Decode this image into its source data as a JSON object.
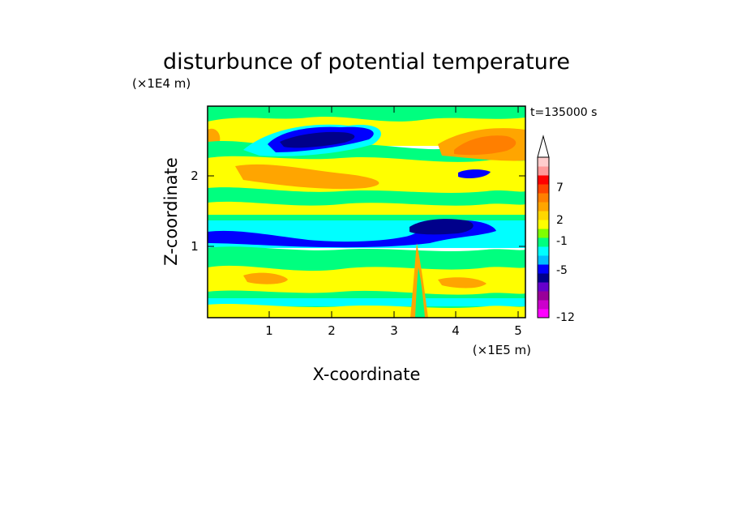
{
  "chart_data": {
    "type": "heatmap",
    "title": "disturbunce of potential temperature",
    "xlabel": "X-coordinate",
    "ylabel": "Z-coordinate",
    "x_unit": "(×1E5 m)",
    "y_unit": "(×1E4 m)",
    "time_label": "t=135000 s",
    "xlim": [
      0,
      5.1
    ],
    "ylim": [
      0,
      3.0
    ],
    "x_ticks": [
      "1",
      "2",
      "3",
      "4",
      "5"
    ],
    "y_ticks": [
      "1",
      "2"
    ],
    "colorbar": {
      "levels_printed": [
        "7",
        "2",
        "-1",
        "-5",
        "-12"
      ],
      "colors": [
        "#ff00ff",
        "#cc00cc",
        "#990099",
        "#6600cc",
        "#00008b",
        "#0000ff",
        "#00bfff",
        "#00ffff",
        "#00ff7f",
        "#7fff00",
        "#ffff00",
        "#ffd700",
        "#ffa500",
        "#ff7f00",
        "#ff4500",
        "#ff0000",
        "#ff9999",
        "#ffcccc"
      ],
      "extends_top": true
    },
    "contour_bands": [
      {
        "z": 2.85,
        "level": "green"
      },
      {
        "z": 2.55,
        "level": "yellow"
      },
      {
        "z": 2.55,
        "level": "blue",
        "note": "negative anomaly near x=1.5-2.7"
      },
      {
        "z": 2.4,
        "level": "orange",
        "note": "positive anomaly near x=4-5"
      },
      {
        "z": 2.15,
        "level": "yellow"
      },
      {
        "z": 1.85,
        "level": "green"
      },
      {
        "z": 1.65,
        "level": "yellow"
      },
      {
        "z": 1.35,
        "level": "green"
      },
      {
        "z": 1.15,
        "level": "cyan"
      },
      {
        "z": 1.0,
        "level": "blue"
      },
      {
        "z": 0.7,
        "level": "green"
      },
      {
        "z": 0.5,
        "level": "yellow"
      },
      {
        "z": 0.3,
        "level": "green"
      },
      {
        "z": 0.12,
        "level": "cyan"
      }
    ]
  }
}
